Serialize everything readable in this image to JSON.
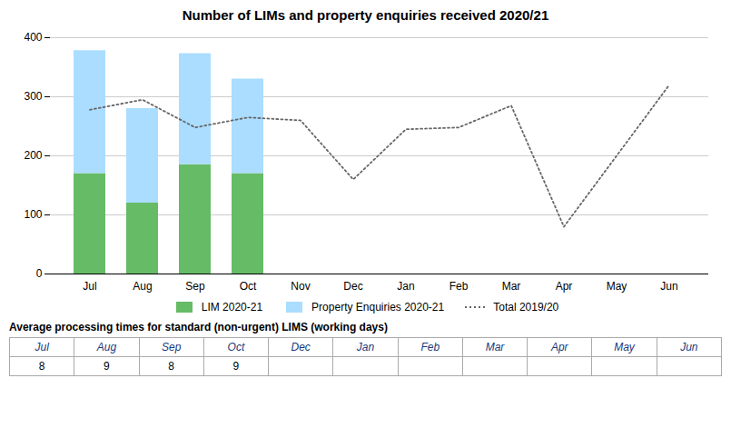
{
  "chart_data": [
    {
      "type": "bar",
      "title": "Number of LIMs and property enquiries received 2020/21",
      "categories": [
        "Jul",
        "Aug",
        "Sep",
        "Oct",
        "Nov",
        "Dec",
        "Jan",
        "Feb",
        "Mar",
        "Apr",
        "May",
        "Jun"
      ],
      "stacked": true,
      "series": [
        {
          "name": "LIM 2020-21",
          "type": "bar",
          "color": "#66bb66",
          "values": [
            170,
            120,
            185,
            170,
            null,
            null,
            null,
            null,
            null,
            null,
            null,
            null
          ]
        },
        {
          "name": "Property Enquiries 2020-21",
          "type": "bar",
          "color": "#aaddff",
          "values": [
            208,
            160,
            188,
            160,
            null,
            null,
            null,
            null,
            null,
            null,
            null,
            null
          ]
        },
        {
          "name": "Total 2019/20",
          "type": "line",
          "color": "#666666",
          "line_style": "dotted",
          "values": [
            278,
            295,
            248,
            265,
            260,
            160,
            245,
            248,
            285,
            80,
            200,
            320
          ]
        }
      ],
      "ylim": [
        0,
        400
      ],
      "yticks": [
        0,
        100,
        200,
        300,
        400
      ],
      "grid": true
    },
    {
      "type": "table",
      "title": "Average processing times for standard (non-urgent) LIMS (working days)",
      "categories": [
        "Jul",
        "Aug",
        "Sep",
        "Oct",
        "Dec",
        "Jan",
        "Feb",
        "Mar",
        "Apr",
        "May",
        "Jun"
      ],
      "values": [
        8,
        9,
        8,
        9,
        null,
        null,
        null,
        null,
        null,
        null,
        null
      ]
    }
  ]
}
